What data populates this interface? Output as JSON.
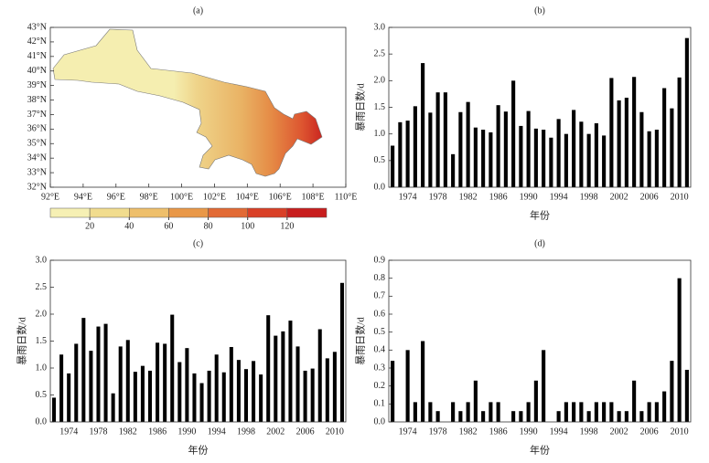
{
  "chart_data": [
    {
      "type": "map",
      "title": "(a)",
      "xlim": [
        92,
        110
      ],
      "ylim": [
        32,
        43
      ],
      "xticks": [
        {
          "value": 92,
          "label": "92°E"
        },
        {
          "value": 94,
          "label": "94°E"
        },
        {
          "value": 96,
          "label": "96°E"
        },
        {
          "value": 98,
          "label": "98°E"
        },
        {
          "value": 100,
          "label": "100°E"
        },
        {
          "value": 102,
          "label": "102°E"
        },
        {
          "value": 104,
          "label": "104°E"
        },
        {
          "value": 106,
          "label": "106°E"
        },
        {
          "value": 108,
          "label": "108°E"
        },
        {
          "value": 110,
          "label": "110°E"
        }
      ],
      "yticks": [
        {
          "value": 32,
          "label": "32°N"
        },
        {
          "value": 33,
          "label": "33°N"
        },
        {
          "value": 34,
          "label": "34°N"
        },
        {
          "value": 35,
          "label": "35°N"
        },
        {
          "value": 36,
          "label": "36°N"
        },
        {
          "value": 37,
          "label": "37°N"
        },
        {
          "value": 38,
          "label": "38°N"
        },
        {
          "value": 39,
          "label": "39°N"
        },
        {
          "value": 40,
          "label": "40°N"
        },
        {
          "value": 41,
          "label": "41°N"
        },
        {
          "value": 42,
          "label": "42°N"
        },
        {
          "value": 43,
          "label": "43°N"
        }
      ],
      "colorbar": {
        "clim": [
          0,
          140
        ],
        "ticks": [
          20,
          40,
          60,
          80,
          100,
          120
        ],
        "colors": [
          "#f6f0b4",
          "#f1dc8e",
          "#eebf6b",
          "#e99848",
          "#e26a35",
          "#d94027",
          "#c81e1e"
        ]
      }
    },
    {
      "type": "bar",
      "title": "(b)",
      "xlabel": "年份",
      "ylabel": "暴雨日数/d",
      "color": "#000000",
      "x": [
        1972,
        1973,
        1974,
        1975,
        1976,
        1977,
        1978,
        1979,
        1980,
        1981,
        1982,
        1983,
        1984,
        1985,
        1986,
        1987,
        1988,
        1989,
        1990,
        1991,
        1992,
        1993,
        1994,
        1995,
        1996,
        1997,
        1998,
        1999,
        2000,
        2001,
        2002,
        2003,
        2004,
        2005,
        2006,
        2007,
        2008,
        2009,
        2010,
        2011
      ],
      "values": [
        0.78,
        1.22,
        1.25,
        1.52,
        2.33,
        1.4,
        1.78,
        1.78,
        0.62,
        1.41,
        1.6,
        1.12,
        1.08,
        1.03,
        1.54,
        1.42,
        2.0,
        1.15,
        1.43,
        1.1,
        1.08,
        0.93,
        1.28,
        1.0,
        1.45,
        1.23,
        1.0,
        1.2,
        0.97,
        2.05,
        1.63,
        1.68,
        2.07,
        1.41,
        1.05,
        1.08,
        1.86,
        1.48,
        2.06,
        2.8
      ],
      "xlim": [
        1971.5,
        2011.5
      ],
      "xticks": [
        1974,
        1978,
        1982,
        1986,
        1990,
        1994,
        1998,
        2002,
        2006,
        2010
      ],
      "ylim": [
        0,
        3
      ],
      "yticks": [
        {
          "value": 0,
          "label": "0.0"
        },
        0.5,
        {
          "value": 1,
          "label": "1.0"
        },
        1.5,
        {
          "value": 2,
          "label": "2.0"
        },
        2.5,
        {
          "value": 3,
          "label": "3.0"
        }
      ]
    },
    {
      "type": "bar",
      "title": "(c)",
      "xlabel": "年份",
      "ylabel": "暴雨日数/d",
      "color": "#000000",
      "x": [
        1972,
        1973,
        1974,
        1975,
        1976,
        1977,
        1978,
        1979,
        1980,
        1981,
        1982,
        1983,
        1984,
        1985,
        1986,
        1987,
        1988,
        1989,
        1990,
        1991,
        1992,
        1993,
        1994,
        1995,
        1996,
        1997,
        1998,
        1999,
        2000,
        2001,
        2002,
        2003,
        2004,
        2005,
        2006,
        2007,
        2008,
        2009,
        2010,
        2011
      ],
      "values": [
        0.45,
        1.25,
        0.9,
        1.45,
        1.93,
        1.32,
        1.77,
        1.82,
        0.53,
        1.4,
        1.52,
        0.93,
        1.04,
        0.95,
        1.47,
        1.45,
        1.99,
        1.11,
        1.37,
        0.9,
        0.72,
        0.95,
        1.25,
        0.92,
        1.39,
        1.15,
        0.98,
        1.13,
        0.88,
        1.98,
        1.6,
        1.68,
        1.88,
        1.4,
        0.95,
        0.99,
        1.72,
        1.18,
        1.3,
        2.58
      ],
      "xlim": [
        1971.5,
        2011.5
      ],
      "xticks": [
        1974,
        1978,
        1982,
        1986,
        1990,
        1994,
        1998,
        2002,
        2006,
        2010
      ],
      "ylim": [
        0,
        3
      ],
      "yticks": [
        {
          "value": 0,
          "label": "0.0"
        },
        0.5,
        {
          "value": 1,
          "label": "1.0"
        },
        1.5,
        {
          "value": 2,
          "label": "2.0"
        },
        2.5,
        {
          "value": 3,
          "label": "3.0"
        }
      ]
    },
    {
      "type": "bar",
      "title": "(d)",
      "xlabel": "年份",
      "ylabel": "暴雨日数/d",
      "color": "#000000",
      "x": [
        1972,
        1973,
        1974,
        1975,
        1976,
        1977,
        1978,
        1979,
        1980,
        1981,
        1982,
        1983,
        1984,
        1985,
        1986,
        1987,
        1988,
        1989,
        1990,
        1991,
        1992,
        1993,
        1994,
        1995,
        1996,
        1997,
        1998,
        1999,
        2000,
        2001,
        2002,
        2003,
        2004,
        2005,
        2006,
        2007,
        2008,
        2009,
        2010,
        2011
      ],
      "values": [
        0.34,
        0,
        0.4,
        0.11,
        0.45,
        0.11,
        0.06,
        0,
        0.11,
        0.06,
        0.11,
        0.23,
        0.06,
        0.11,
        0.11,
        0,
        0.06,
        0.06,
        0.11,
        0.23,
        0.4,
        0,
        0.06,
        0.11,
        0.11,
        0.11,
        0.06,
        0.11,
        0.11,
        0.11,
        0.06,
        0.06,
        0.23,
        0.06,
        0.11,
        0.11,
        0.17,
        0.34,
        0.8,
        0.29
      ],
      "xlim": [
        1971.5,
        2011.5
      ],
      "xticks": [
        1974,
        1978,
        1982,
        1986,
        1990,
        1994,
        1998,
        2002,
        2006,
        2010
      ],
      "ylim": [
        0,
        0.9
      ],
      "yticks": [
        {
          "value": 0,
          "label": "0.0"
        },
        0.1,
        0.2,
        0.3,
        0.4,
        0.5,
        0.6,
        0.7,
        0.8,
        0.9
      ]
    }
  ]
}
